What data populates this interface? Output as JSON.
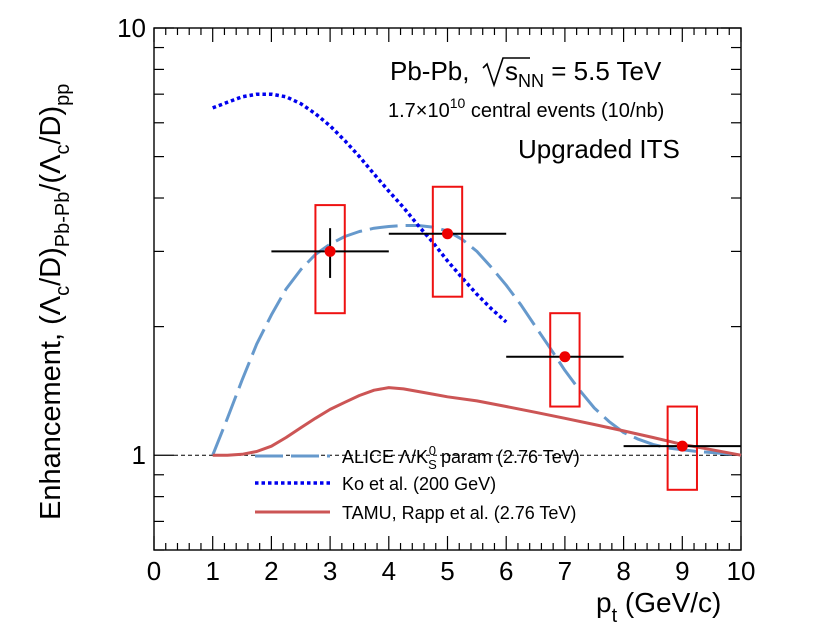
{
  "chart_data": {
    "type": "line",
    "y_scale": "log",
    "xlabel": {
      "p": "p",
      "sub": "t",
      "rest": " (GeV/c)"
    },
    "ylabel": {
      "prefix": "Enhancement, (Λ",
      "c1": "c",
      "mid1": "/D)",
      "sub1": "Pb-Pb",
      "mid2": "/(Λ",
      "c2": "c",
      "mid3": "/D)",
      "sub2": "pp"
    },
    "xlim": [
      0,
      10
    ],
    "ylim": [
      0.6,
      10
    ],
    "x_ticks": [
      "0",
      "1",
      "2",
      "3",
      "4",
      "5",
      "6",
      "7",
      "8",
      "9",
      "10"
    ],
    "y_tick_labels": [
      {
        "value": 1,
        "label": "1"
      },
      {
        "value": 10,
        "label": "10"
      }
    ],
    "reference_line": {
      "y": 1,
      "style": "dashed"
    },
    "annotations": {
      "system": "Pb-Pb,",
      "sqrt_s_tail": "s",
      "sqrt_s_sub": "NN",
      "energy": " = 5.5 TeV",
      "events_base": "1.7×10",
      "events_exp": "10",
      "events_tail": " central events (10/nb)",
      "detector": "Upgraded ITS"
    },
    "series": [
      {
        "name": "ALICE Λ/K_S^0 param (2.76 TeV)",
        "legend": {
          "pre": "ALICE Λ/K",
          "sub": "S",
          "sup": "0",
          "post": " param (2.76 TeV)"
        },
        "style": "long-dash",
        "color": "#6699cc",
        "x": [
          1.0,
          1.25,
          1.5,
          1.75,
          2.0,
          2.25,
          2.5,
          2.75,
          3.0,
          3.25,
          3.5,
          3.75,
          4.0,
          4.25,
          4.5,
          4.75,
          5.0,
          5.25,
          5.5,
          5.75,
          6.0,
          6.25,
          6.5,
          6.75,
          7.0,
          7.25,
          7.5,
          7.75,
          8.0,
          8.25,
          8.5,
          8.75,
          9.0,
          9.25,
          9.5,
          9.75,
          10.0
        ],
        "y": [
          1.0,
          1.22,
          1.5,
          1.82,
          2.13,
          2.45,
          2.72,
          2.95,
          3.12,
          3.25,
          3.34,
          3.4,
          3.43,
          3.45,
          3.45,
          3.42,
          3.35,
          3.2,
          3.0,
          2.75,
          2.5,
          2.25,
          2.0,
          1.78,
          1.58,
          1.42,
          1.29,
          1.2,
          1.13,
          1.09,
          1.06,
          1.04,
          1.03,
          1.02,
          1.015,
          1.008,
          1.0
        ]
      },
      {
        "name": "Ko et al. (200 GeV)",
        "legend": {
          "pre": "Ko et al. (200 GeV)",
          "sub": "",
          "sup": "",
          "post": ""
        },
        "style": "dotted",
        "color": "#0000ee",
        "x": [
          1.0,
          1.25,
          1.5,
          1.75,
          2.0,
          2.25,
          2.5,
          2.75,
          3.0,
          3.25,
          3.5,
          3.75,
          4.0,
          4.25,
          4.5,
          4.75,
          5.0,
          5.25,
          5.5,
          5.75,
          6.0
        ],
        "y": [
          6.5,
          6.7,
          6.9,
          7.0,
          7.0,
          6.9,
          6.65,
          6.3,
          5.9,
          5.45,
          5.0,
          4.55,
          4.15,
          3.8,
          3.45,
          3.15,
          2.85,
          2.6,
          2.38,
          2.2,
          2.05
        ]
      },
      {
        "name": "TAMU, Rapp et al. (2.76 TeV)",
        "legend": {
          "pre": "TAMU, Rapp et al. (2.76 TeV)",
          "sub": "",
          "sup": "",
          "post": ""
        },
        "style": "solid",
        "color": "#cc5555",
        "x": [
          1.0,
          1.25,
          1.5,
          1.75,
          2.0,
          2.25,
          2.5,
          2.75,
          3.0,
          3.25,
          3.5,
          3.75,
          4.0,
          4.25,
          4.5,
          4.75,
          5.0,
          5.5,
          6.0,
          6.5,
          7.0,
          7.5,
          8.0,
          8.5,
          9.0,
          9.5,
          10.0
        ],
        "y": [
          1.0,
          1.0,
          1.005,
          1.02,
          1.05,
          1.1,
          1.16,
          1.22,
          1.28,
          1.33,
          1.38,
          1.42,
          1.44,
          1.43,
          1.41,
          1.39,
          1.37,
          1.34,
          1.3,
          1.26,
          1.22,
          1.18,
          1.14,
          1.1,
          1.06,
          1.03,
          1.0
        ]
      }
    ],
    "points": [
      {
        "x": 3,
        "y": 3.0,
        "x_low": 2,
        "x_high": 4,
        "stat_low": 2.6,
        "stat_high": 3.4,
        "sys_low": 2.15,
        "sys_high": 3.85,
        "box_half_width": 0.25
      },
      {
        "x": 5,
        "y": 3.3,
        "x_low": 4,
        "x_high": 6,
        "stat_low": 3.25,
        "stat_high": 3.35,
        "sys_low": 2.35,
        "sys_high": 4.25,
        "box_half_width": 0.25
      },
      {
        "x": 7,
        "y": 1.7,
        "x_low": 6,
        "x_high": 8,
        "stat_low": 1.68,
        "stat_high": 1.72,
        "sys_low": 1.3,
        "sys_high": 2.15,
        "box_half_width": 0.25
      },
      {
        "x": 9,
        "y": 1.05,
        "x_low": 8,
        "x_high": 10,
        "stat_low": 1.04,
        "stat_high": 1.06,
        "sys_low": 0.83,
        "sys_high": 1.3,
        "box_half_width": 0.25
      }
    ]
  }
}
